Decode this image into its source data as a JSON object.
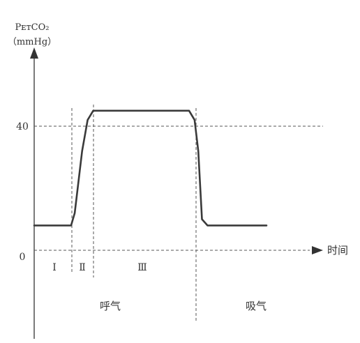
{
  "chart_data": {
    "type": "line",
    "title": "",
    "ylabel": {
      "parameter": "PetCO2",
      "line1": "PᴇᴛCO₂",
      "line2": "（mmHg）"
    },
    "xlabel": "时间",
    "y_ticks": [
      "40",
      "0"
    ],
    "ylim": [
      -20,
      80
    ],
    "phases": [
      {
        "label": "Ⅰ"
      },
      {
        "label": "Ⅱ"
      },
      {
        "label": "Ⅲ"
      }
    ],
    "regions": [
      {
        "label": "呼气"
      },
      {
        "label": "吸气"
      }
    ],
    "series": [
      {
        "points": [
          {
            "t": 0.0,
            "v": 8
          },
          {
            "t": 1.0,
            "v": 8
          },
          {
            "t": 1.1,
            "v": 12
          },
          {
            "t": 1.3,
            "v": 32
          },
          {
            "t": 1.45,
            "v": 42
          },
          {
            "t": 1.6,
            "v": 45
          },
          {
            "t": 4.2,
            "v": 45
          },
          {
            "t": 4.35,
            "v": 42
          },
          {
            "t": 4.45,
            "v": 32
          },
          {
            "t": 4.55,
            "v": 10
          },
          {
            "t": 4.7,
            "v": 8
          },
          {
            "t": 6.3,
            "v": 8
          }
        ]
      }
    ],
    "grid": false
  }
}
